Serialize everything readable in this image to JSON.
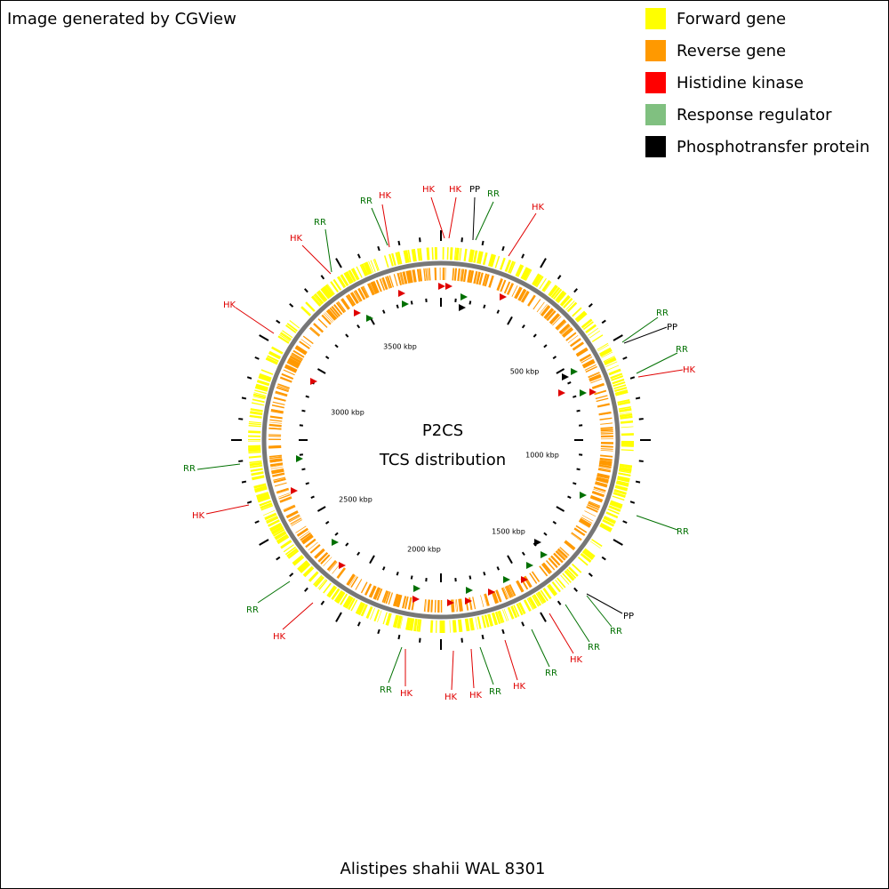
{
  "header": {
    "title": "Image generated by CGView"
  },
  "legend": [
    {
      "label": "Forward gene",
      "color": "#ffff00"
    },
    {
      "label": "Reverse gene",
      "color": "#ff9900"
    },
    {
      "label": "Histidine kinase",
      "color": "#ff0000"
    },
    {
      "label": "Response regulator",
      "color": "#80c080"
    },
    {
      "label": "Phosphotransfer protein",
      "color": "#000000"
    }
  ],
  "center": {
    "title": "P2CS",
    "subtitle": "TCS distribution"
  },
  "ruler_labels": [
    "500 kbp",
    "1000 kbp",
    "1500 kbp",
    "2000 kbp",
    "2500 kbp",
    "3000 kbp",
    "3500 kbp"
  ],
  "feature_labels": [
    {
      "text": "HK",
      "color": "#e00000"
    },
    {
      "text": "RR",
      "color": "#007000"
    },
    {
      "text": "HK",
      "color": "#e00000"
    },
    {
      "text": "HK",
      "color": "#e00000"
    },
    {
      "text": "PP",
      "color": "#000000"
    },
    {
      "text": "RR",
      "color": "#007000"
    },
    {
      "text": "HK",
      "color": "#e00000"
    },
    {
      "text": "RR",
      "color": "#007000"
    },
    {
      "text": "HK",
      "color": "#e00000"
    },
    {
      "text": "HK",
      "color": "#e00000"
    },
    {
      "text": "RR",
      "color": "#007000"
    },
    {
      "text": "PP",
      "color": "#000000"
    },
    {
      "text": "RR",
      "color": "#007000"
    },
    {
      "text": "HK",
      "color": "#e00000"
    },
    {
      "text": "RR",
      "color": "#007000"
    },
    {
      "text": "HK",
      "color": "#e00000"
    },
    {
      "text": "RR",
      "color": "#007000"
    },
    {
      "text": "PP",
      "color": "#000000"
    },
    {
      "text": "RR",
      "color": "#007000"
    },
    {
      "text": "RR",
      "color": "#007000"
    },
    {
      "text": "HK",
      "color": "#e00000"
    },
    {
      "text": "RR",
      "color": "#007000"
    },
    {
      "text": "HK",
      "color": "#e00000"
    },
    {
      "text": "RR",
      "color": "#007000"
    },
    {
      "text": "HK",
      "color": "#e00000"
    },
    {
      "text": "HK",
      "color": "#e00000"
    },
    {
      "text": "HK",
      "color": "#e00000"
    },
    {
      "text": "RR",
      "color": "#007000"
    },
    {
      "text": "HK",
      "color": "#e00000"
    },
    {
      "text": "RR",
      "color": "#007000"
    }
  ],
  "footer": {
    "organism": "Alistipes shahii WAL 8301"
  }
}
